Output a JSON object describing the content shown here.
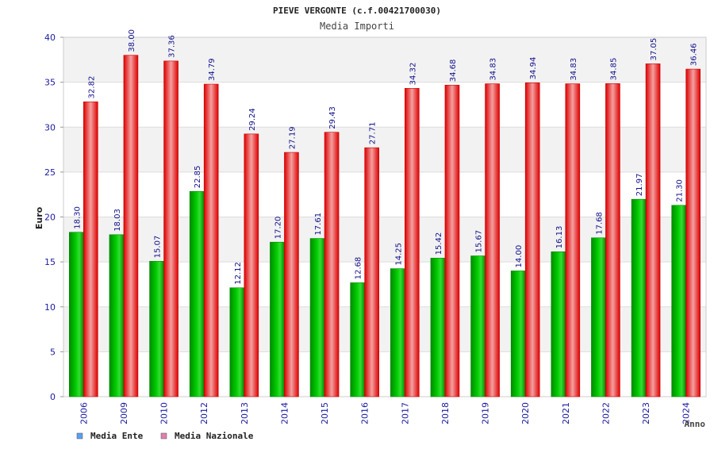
{
  "chart_data": {
    "type": "bar",
    "title": "PIEVE VERGONTE (c.f.00421700030)",
    "subtitle": "Media Importi",
    "xlabel": "Anno",
    "ylabel": "Euro",
    "ylim": [
      0,
      40
    ],
    "yticks": [
      0,
      5,
      10,
      15,
      20,
      25,
      30,
      35,
      40
    ],
    "categories": [
      "2006",
      "2009",
      "2010",
      "2012",
      "2013",
      "2014",
      "2015",
      "2016",
      "2017",
      "2018",
      "2019",
      "2020",
      "2021",
      "2022",
      "2023",
      "2024"
    ],
    "series": [
      {
        "name": "Media Ente",
        "values": [
          18.3,
          18.03,
          15.07,
          22.85,
          12.12,
          17.2,
          17.61,
          12.68,
          14.25,
          15.42,
          15.67,
          14.0,
          16.13,
          17.68,
          21.97,
          21.3
        ],
        "labels": [
          "18.30",
          "18.03",
          "15.07",
          "22.85",
          "12.12",
          "17.20",
          "17.61",
          "12.68",
          "14.25",
          "15.42",
          "15.67",
          "14.00",
          "16.13",
          "17.68",
          "21.97",
          "21.30"
        ],
        "color": "#00b000",
        "legend_color": "#5aa0f0"
      },
      {
        "name": "Media Nazionale",
        "values": [
          32.82,
          38.0,
          37.36,
          34.79,
          29.24,
          27.19,
          29.43,
          27.71,
          34.32,
          34.68,
          34.83,
          34.94,
          34.83,
          34.85,
          37.05,
          36.46
        ],
        "labels": [
          "32.82",
          "38.00",
          "37.36",
          "34.79",
          "29.24",
          "27.19",
          "29.43",
          "27.71",
          "34.32",
          "34.68",
          "34.83",
          "34.94",
          "34.83",
          "34.85",
          "37.05",
          "36.46"
        ],
        "color": "#ee1111",
        "legend_color": "#e080b0"
      }
    ],
    "grid": true,
    "legend_position": "bottom-left"
  }
}
